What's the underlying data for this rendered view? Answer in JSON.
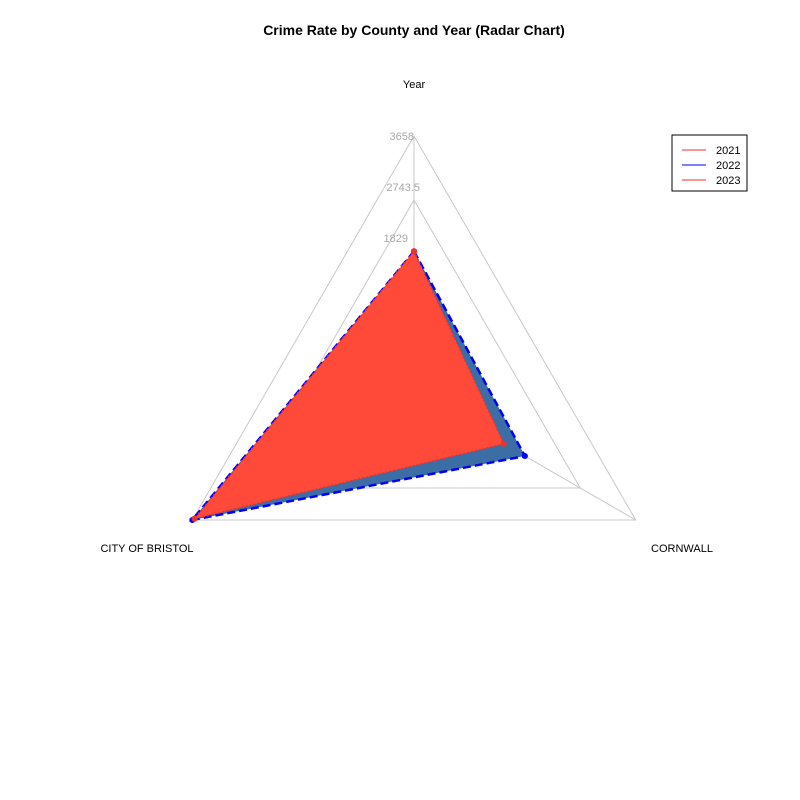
{
  "chart_data": {
    "type": "radar",
    "title": "Crime Rate by County and Year (Radar Chart)",
    "axes": [
      "Year",
      "CORNWALL",
      "CITY OF BRISTOL"
    ],
    "range": [
      0,
      3658
    ],
    "ticks": [
      "1829",
      "2743.5",
      "3658"
    ],
    "legend_position": "top-right",
    "series": [
      {
        "name": "2021",
        "values": [
          2011,
          1480,
          3620
        ],
        "line_color": "#e8332f",
        "fill_color": "#ff4a3a",
        "line_style": "dotted"
      },
      {
        "name": "2022",
        "values": [
          2011,
          1830,
          3658
        ],
        "line_color": "#0000ff",
        "fill_color": "#3a6ea5",
        "line_style": "dashed"
      },
      {
        "name": "2023",
        "values": [
          2011,
          1480,
          3620
        ],
        "line_color": "#e8332f",
        "fill_color": "#ff4a3a",
        "line_style": "dotted"
      }
    ]
  }
}
